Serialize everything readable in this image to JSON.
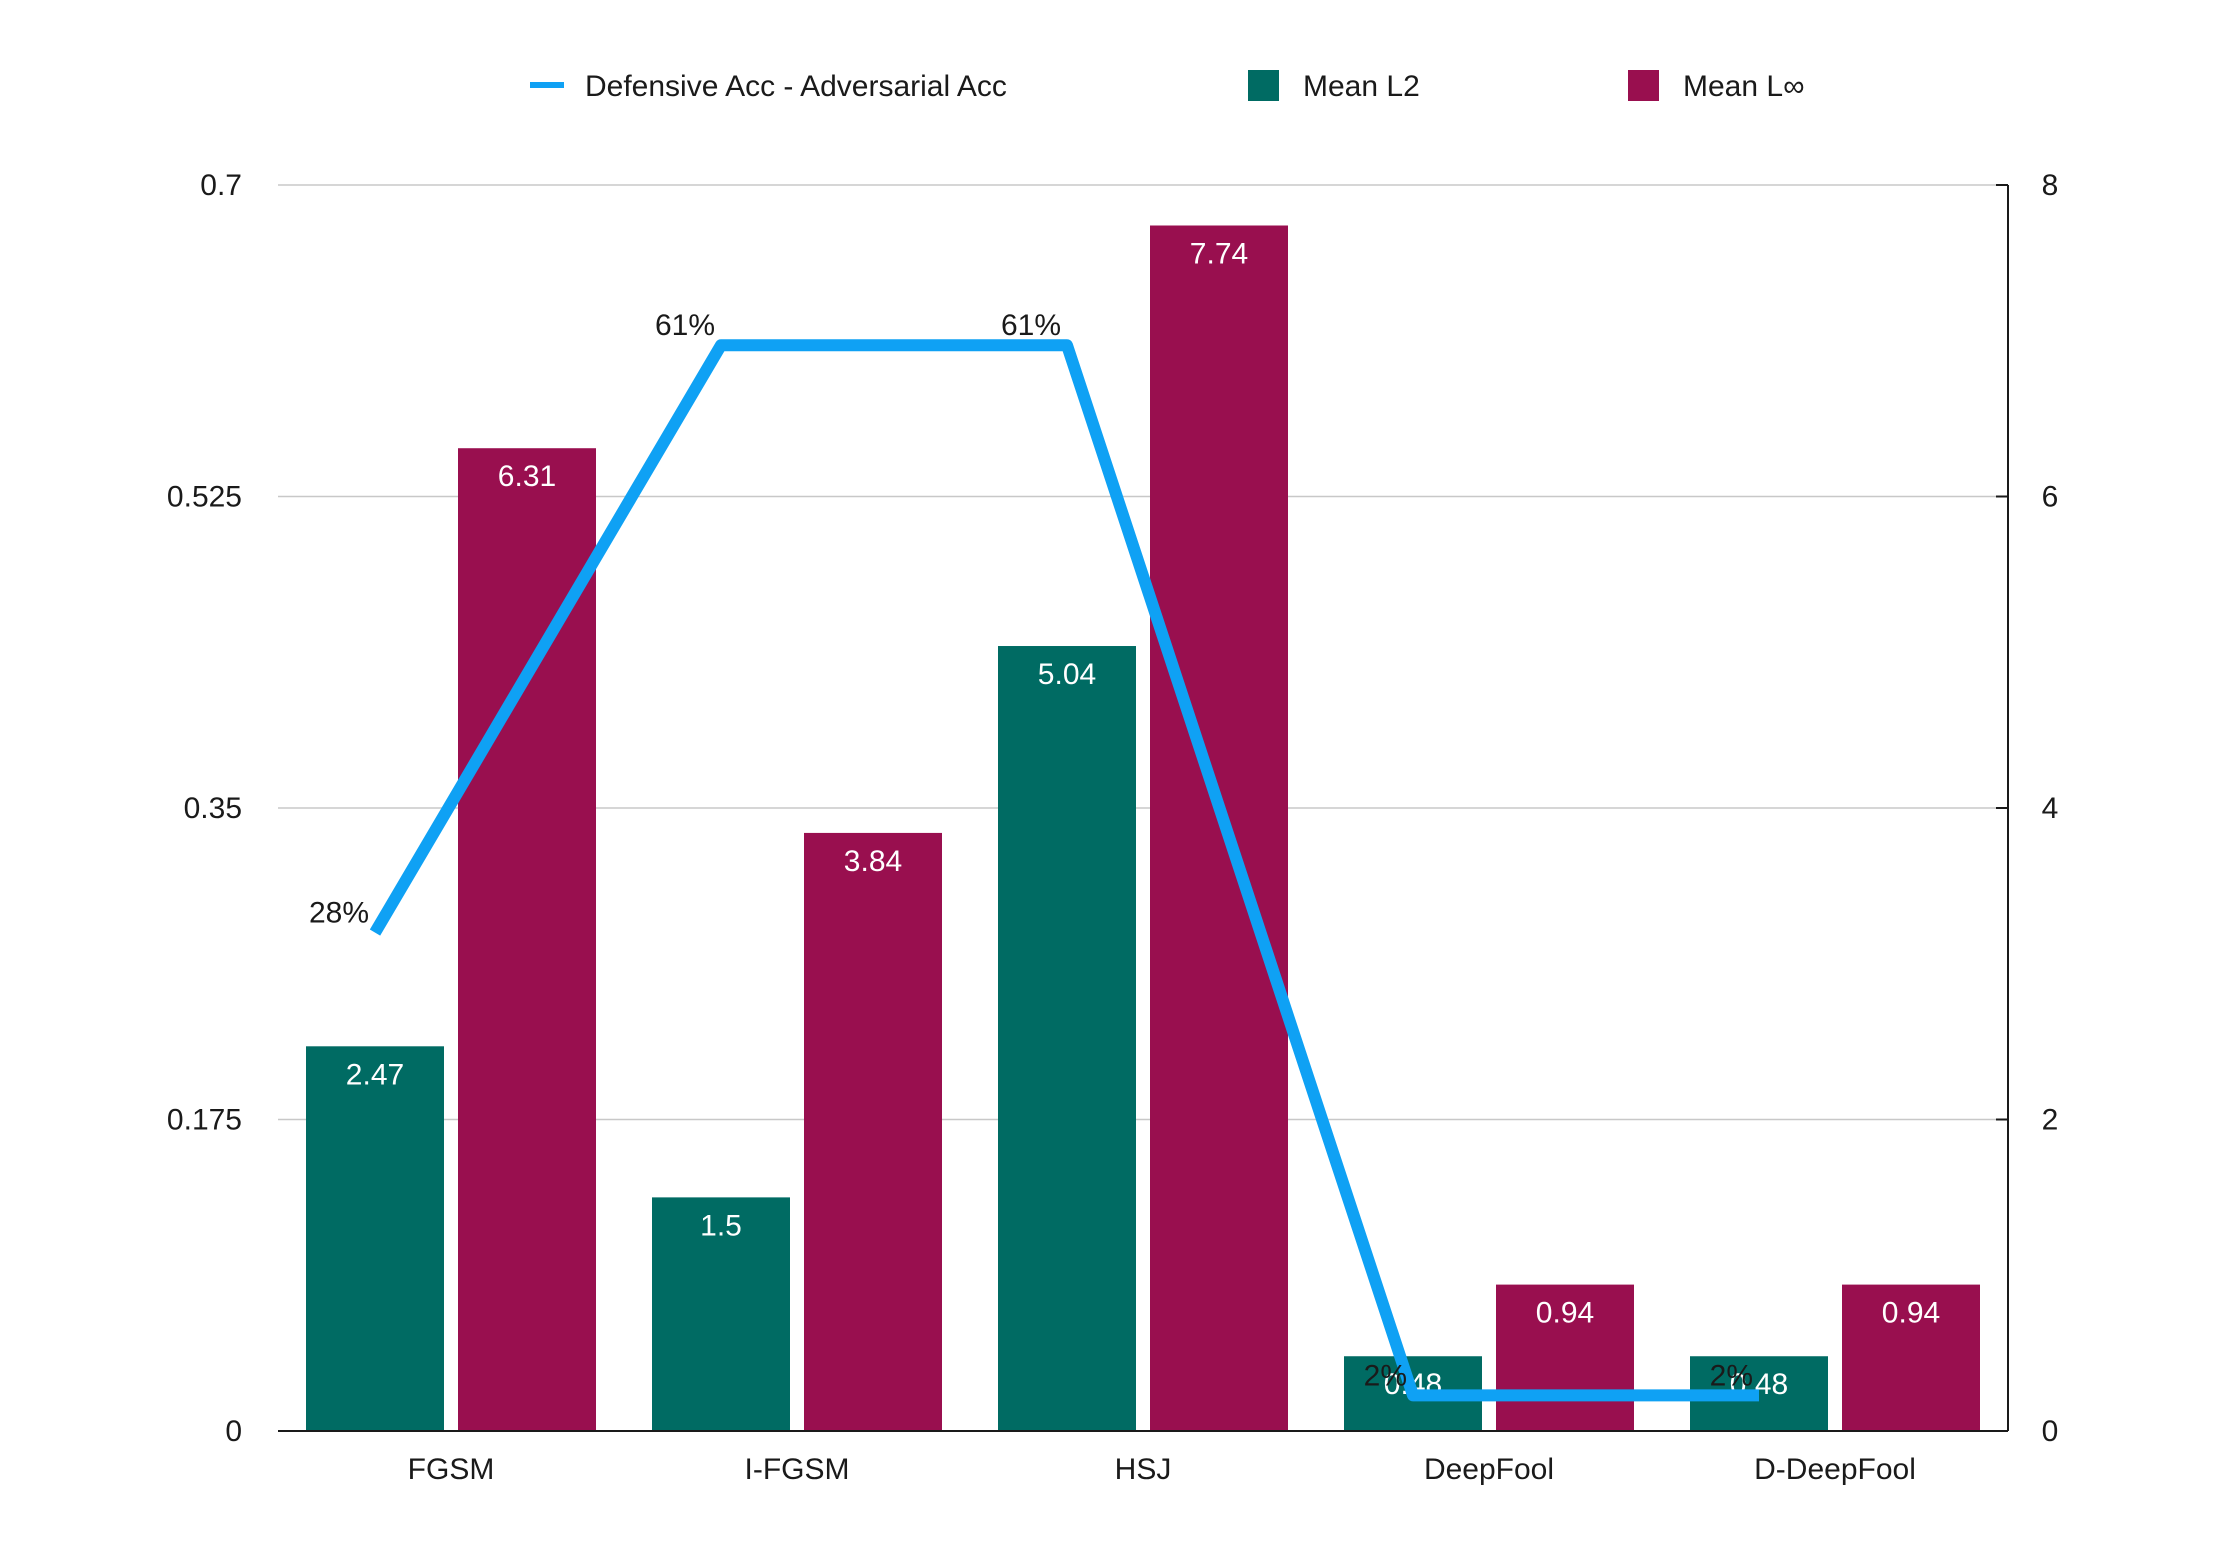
{
  "chart_data": {
    "type": "bar",
    "title": "",
    "categories": [
      "FGSM",
      "I-FGSM",
      "HSJ",
      "DeepFool",
      "D-DeepFool"
    ],
    "series": [
      {
        "name": "Mean L2",
        "kind": "bar",
        "axis": "right",
        "color": "#006B63",
        "values": [
          2.47,
          1.5,
          5.04,
          0.48,
          0.48
        ],
        "labels": [
          "2.47",
          "1.5",
          "5.04",
          "0.48",
          "0.48"
        ]
      },
      {
        "name": "Mean L∞",
        "kind": "bar",
        "axis": "right",
        "color": "#990F4F",
        "values": [
          6.31,
          3.84,
          7.74,
          0.94,
          0.94
        ],
        "labels": [
          "6.31",
          "3.84",
          "7.74",
          "0.94",
          "0.94"
        ]
      },
      {
        "name": "Defensive Acc - Adversarial Acc",
        "kind": "line",
        "axis": "left",
        "color": "#0FA1F4",
        "values": [
          0.28,
          0.61,
          0.61,
          0.02,
          0.02
        ],
        "labels": [
          "28%",
          "61%",
          "61%",
          "2%",
          "2%"
        ]
      }
    ],
    "y_left": {
      "min": 0,
      "max": 0.7,
      "ticks": [
        "0",
        "0.175",
        "0.35",
        "0.525",
        "0.7"
      ]
    },
    "y_right": {
      "min": 0,
      "max": 8,
      "ticks": [
        "0",
        "2",
        "4",
        "6",
        "8"
      ]
    },
    "legend": {
      "placement": "top-center"
    },
    "grid": true
  }
}
